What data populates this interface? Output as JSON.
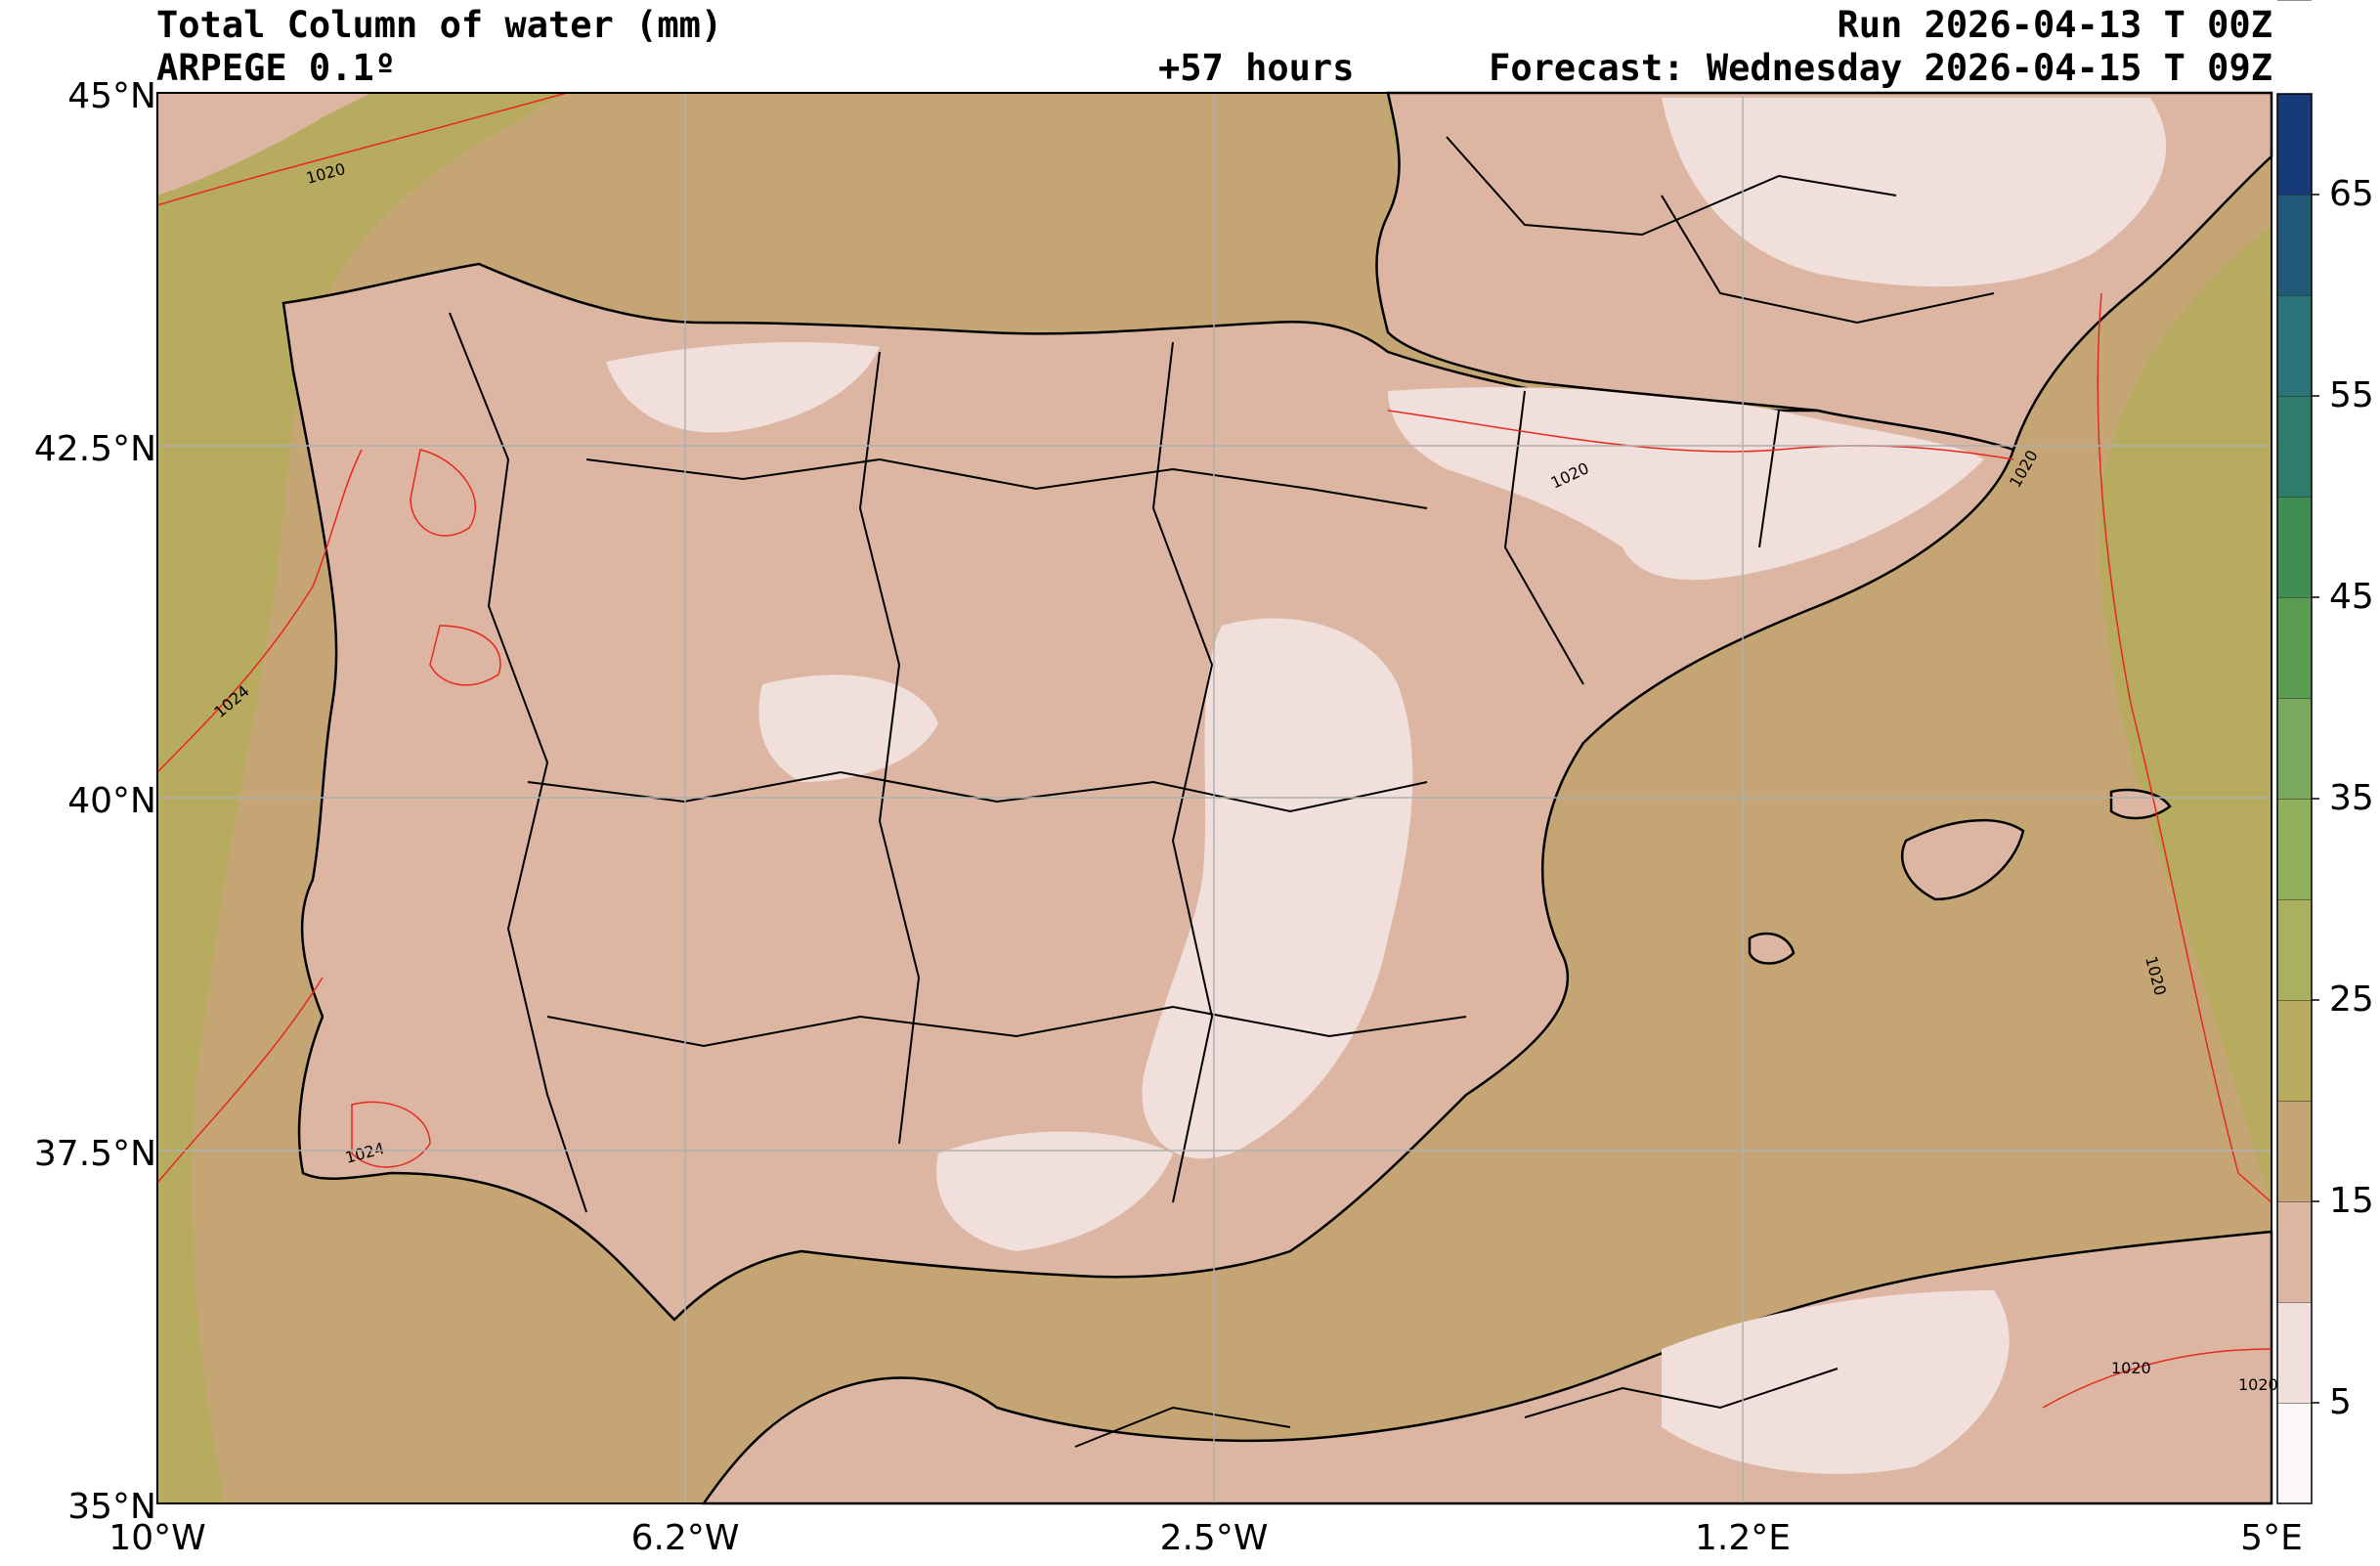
{
  "header": {
    "title": "Total Column of water (mm)",
    "model": "ARPEGE 0.1º",
    "lead_time": "+57 hours",
    "run": "Run 2026-04-13 T 00Z",
    "forecast": "Forecast: Wednesday 2026-04-15 T 09Z"
  },
  "axes": {
    "lat_labels": [
      "45°N",
      "42.5°N",
      "40°N",
      "37.5°N",
      "35°N"
    ],
    "lon_labels": [
      "10°W",
      "6.2°W",
      "2.5°W",
      "1.2°E",
      "5°E"
    ],
    "lat_range": [
      35,
      45
    ],
    "lon_range": [
      -10,
      5
    ],
    "grid": true
  },
  "colorbar": {
    "tick_labels": [
      "65",
      "55",
      "45",
      "35",
      "25",
      "15",
      "5"
    ],
    "levels": [
      0,
      5,
      10,
      15,
      20,
      25,
      30,
      35,
      40,
      45,
      50,
      55,
      60,
      65,
      70
    ],
    "colors": [
      "#fcf7f6",
      "#f1dfdc",
      "#dcb6a2",
      "#c5a574",
      "#b7ab5f",
      "#a9b05e",
      "#8faf5a",
      "#79a95c",
      "#5a9d52",
      "#3f8f55",
      "#2e7c6b",
      "#2a7479",
      "#205a78",
      "#173b7a",
      "#0a0a0a"
    ]
  },
  "isobars": {
    "labels": [
      "1020",
      "1024",
      "1020",
      "1020",
      "1020",
      "1024",
      "1020",
      "1020"
    ],
    "color": "#e8281f"
  },
  "colors": {
    "land_border": "#000000",
    "grid": "#b0b0b0",
    "sea_dry": "#c5a574",
    "sea_moist": "#b7ab5f",
    "land_light": "#f1dfdc",
    "land_mid": "#dcb6a2"
  }
}
